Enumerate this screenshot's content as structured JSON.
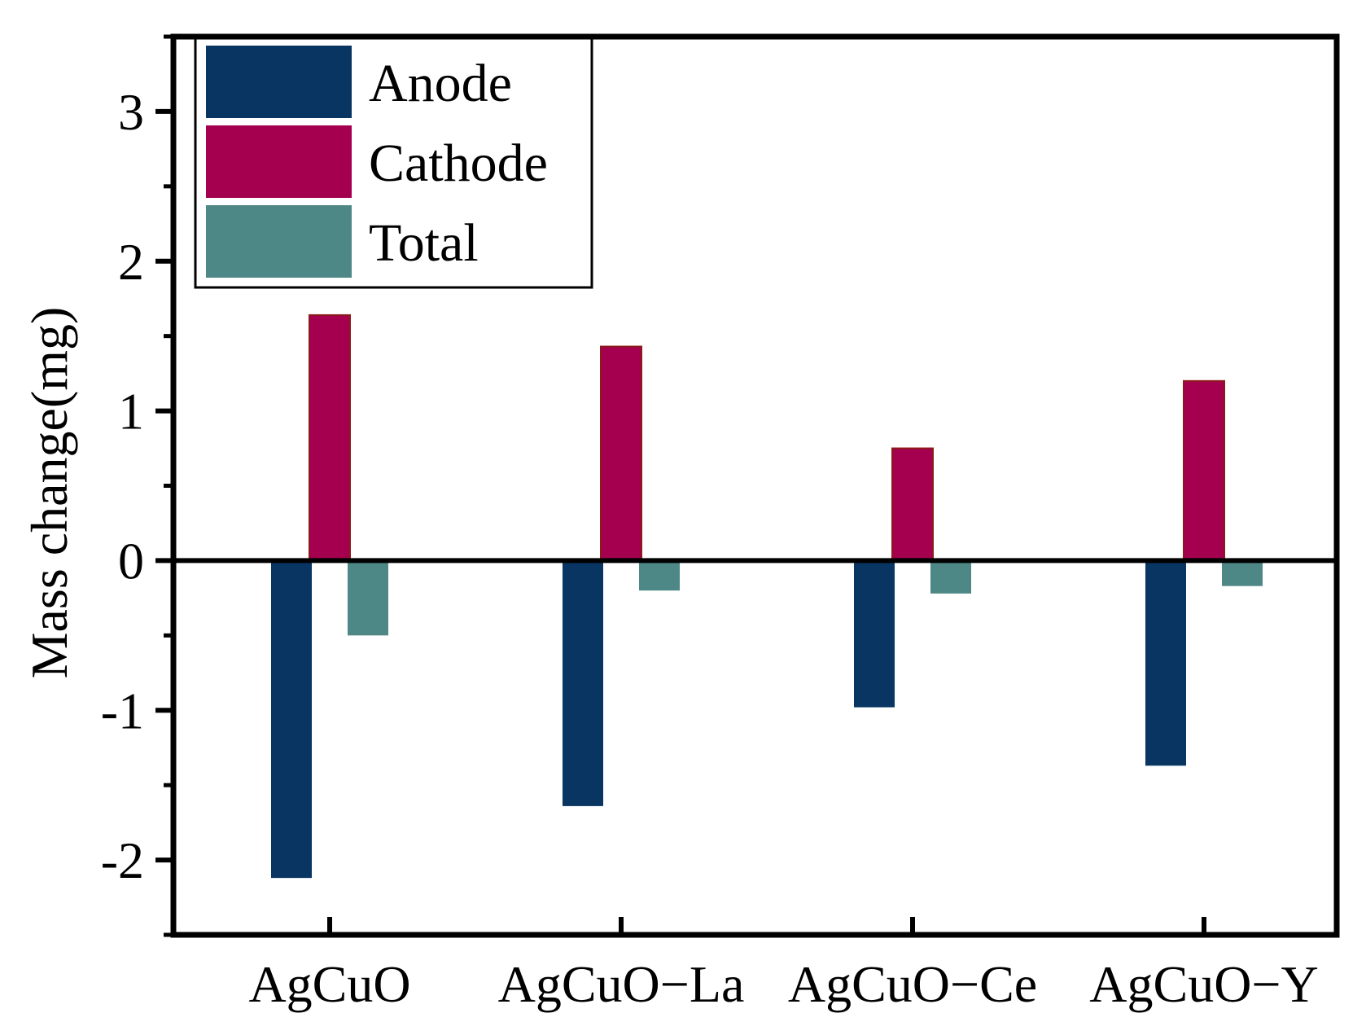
{
  "chart_data": {
    "type": "bar",
    "title": "",
    "xlabel": "",
    "ylabel": "Mass change(mg)",
    "ylim": [
      -2.5,
      3.5
    ],
    "yticks": [
      -2,
      -1,
      0,
      1,
      2,
      3
    ],
    "ytick_labels": [
      "-2",
      "-1",
      "0",
      "1",
      "2",
      "3"
    ],
    "categories": [
      "AgCuO",
      "AgCuO−La",
      "AgCuO−Ce",
      "AgCuO−Y"
    ],
    "series": [
      {
        "name": "Anode",
        "color": "#083562",
        "values": [
          -2.12,
          -1.64,
          -0.98,
          -1.37
        ]
      },
      {
        "name": "Cathode",
        "color": "#A5004F",
        "values": [
          1.64,
          1.43,
          0.75,
          1.2
        ]
      },
      {
        "name": "Total",
        "color": "#4E8886",
        "values": [
          -0.5,
          -0.2,
          -0.22,
          -0.17
        ]
      }
    ],
    "legend_position": "top-left",
    "grid": false
  }
}
